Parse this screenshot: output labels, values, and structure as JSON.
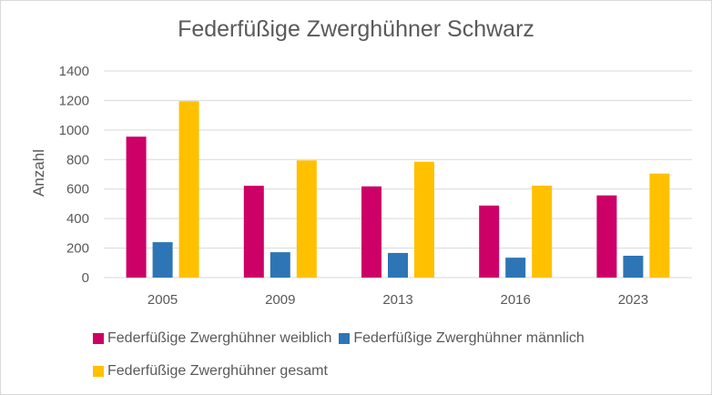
{
  "chart_data": {
    "type": "bar",
    "title": "Federfüßige Zwerghühner Schwarz",
    "ylabel": "Anzahl",
    "xlabel": "",
    "categories": [
      "2005",
      "2009",
      "2013",
      "2016",
      "2023"
    ],
    "ylim": [
      0,
      1400
    ],
    "yticks": [
      0,
      200,
      400,
      600,
      800,
      1000,
      1200,
      1400
    ],
    "yticklabels": [
      "0",
      "200",
      "400",
      "600",
      "800",
      "1000",
      "1200",
      "1400"
    ],
    "grid": true,
    "legend_position": "bottom",
    "series": [
      {
        "name": "Federfüßige Zwerghühner weiblich",
        "color": "#cc0066",
        "values": [
          955,
          622,
          618,
          488,
          557
        ]
      },
      {
        "name": "Federfüßige Zwerghühner männlich",
        "color": "#2e75b6",
        "values": [
          240,
          172,
          167,
          135,
          148
        ]
      },
      {
        "name": "Federfüßige Zwerghühner gesamt",
        "color": "#ffc000",
        "values": [
          1195,
          794,
          785,
          623,
          705
        ]
      }
    ]
  }
}
